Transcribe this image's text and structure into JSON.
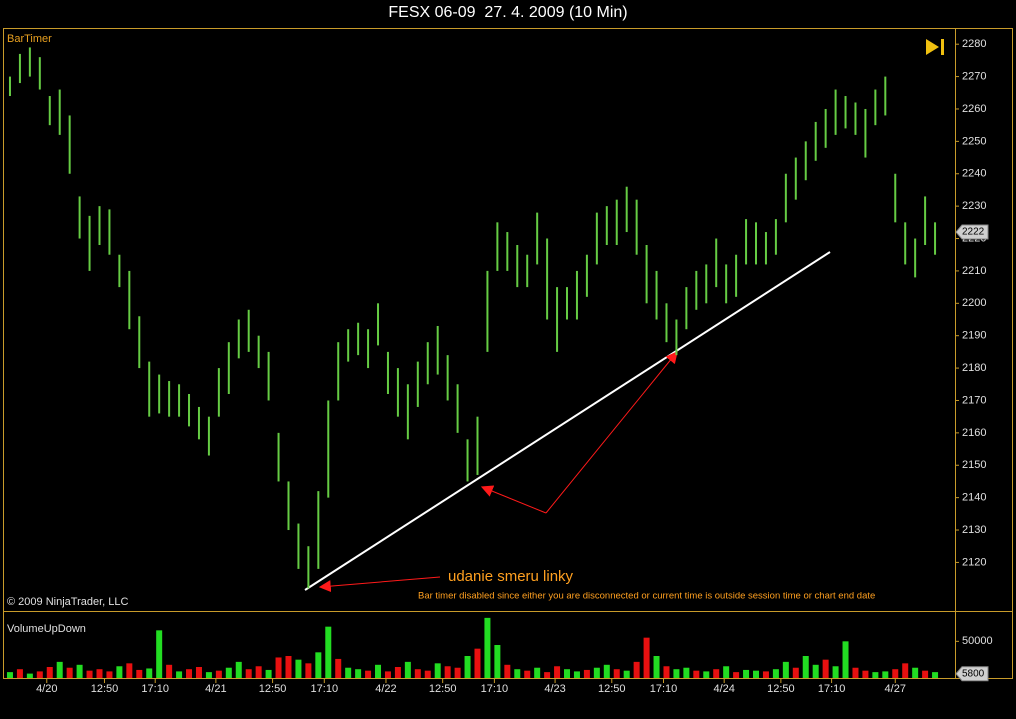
{
  "chart_data": [
    {
      "type": "range_bar",
      "title": "FESX 06-09  27. 4. 2009 (10 Min)",
      "indicator": "BarTimer",
      "copyright": "© 2009 NinjaTrader, LLC",
      "annotations": [
        "udanie smeru linky",
        "Bar timer disabled since either you are disconnected or current time is outside session time or chart end date"
      ],
      "color": "#66cc44",
      "high": [
        2270,
        2277,
        2279,
        2276,
        2264,
        2266,
        2258,
        2233,
        2227,
        2230,
        2229,
        2215,
        2210,
        2196,
        2182,
        2178,
        2176,
        2175,
        2172,
        2168,
        2165,
        2180,
        2188,
        2195,
        2198,
        2190,
        2185,
        2160,
        2145,
        2132,
        2125,
        2142,
        2170,
        2188,
        2192,
        2194,
        2192,
        2200,
        2185,
        2180,
        2175,
        2182,
        2188,
        2193,
        2184,
        2175,
        2158,
        2165,
        2210,
        2225,
        2222,
        2218,
        2215,
        2228,
        2220,
        2205,
        2205,
        2210,
        2215,
        2228,
        2230,
        2232,
        2236,
        2232,
        2218,
        2210,
        2200,
        2195,
        2205,
        2210,
        2212,
        2220,
        2212,
        2215,
        2226,
        2225,
        2222,
        2226,
        2240,
        2245,
        2250,
        2256,
        2260,
        2266,
        2264,
        2262,
        2260,
        2266,
        2270,
        2240,
        2225,
        2220,
        2233,
        2225
      ],
      "low": [
        2264,
        2268,
        2270,
        2266,
        2255,
        2252,
        2240,
        2220,
        2210,
        2218,
        2215,
        2205,
        2192,
        2180,
        2165,
        2166,
        2165,
        2165,
        2162,
        2158,
        2153,
        2165,
        2172,
        2183,
        2185,
        2180,
        2170,
        2145,
        2130,
        2118,
        2112,
        2118,
        2140,
        2170,
        2182,
        2184,
        2180,
        2187,
        2172,
        2165,
        2158,
        2168,
        2175,
        2178,
        2170,
        2160,
        2145,
        2147,
        2185,
        2210,
        2210,
        2205,
        2205,
        2212,
        2195,
        2185,
        2195,
        2195,
        2202,
        2212,
        2218,
        2218,
        2222,
        2215,
        2200,
        2195,
        2188,
        2184,
        2192,
        2198,
        2200,
        2205,
        2200,
        2202,
        2212,
        2212,
        2212,
        2215,
        2225,
        2232,
        2238,
        2244,
        2248,
        2252,
        2254,
        2252,
        2245,
        2255,
        2258,
        2225,
        2212,
        2208,
        2218,
        2215
      ],
      "last_price": 2222,
      "xlim": [
        -0.5,
        94
      ],
      "ylim": [
        2105,
        2285
      ],
      "yticks": [
        2120,
        2130,
        2140,
        2150,
        2160,
        2170,
        2180,
        2190,
        2200,
        2210,
        2220,
        2230,
        2240,
        2250,
        2260,
        2270,
        2280
      ]
    },
    {
      "type": "bar",
      "title": "VolumeUpDown",
      "values": [
        8000,
        12000,
        6000,
        9000,
        15000,
        22000,
        14000,
        18000,
        10000,
        12000,
        9000,
        16000,
        20000,
        11000,
        13000,
        65000,
        18000,
        9000,
        12000,
        15000,
        8000,
        10000,
        14000,
        22000,
        12000,
        16000,
        11000,
        28000,
        30000,
        25000,
        20000,
        35000,
        70000,
        26000,
        14000,
        12000,
        10000,
        18000,
        9000,
        15000,
        22000,
        12000,
        10000,
        20000,
        16000,
        14000,
        30000,
        40000,
        82000,
        45000,
        18000,
        12000,
        10000,
        14000,
        8000,
        16000,
        12000,
        9000,
        11000,
        14000,
        18000,
        12000,
        10000,
        22000,
        55000,
        30000,
        16000,
        12000,
        14000,
        10000,
        9000,
        12000,
        16000,
        8000,
        11000,
        10000,
        9000,
        12000,
        22000,
        14000,
        30000,
        18000,
        25000,
        16000,
        50000,
        14000,
        10000,
        8000,
        9000,
        12000,
        20000,
        14000,
        10000,
        8000
      ],
      "colors": [
        "#22dd22",
        "#e81010",
        "#22dd22",
        "#e81010",
        "#e81010",
        "#22dd22",
        "#e81010",
        "#22dd22",
        "#e81010",
        "#e81010",
        "#e81010",
        "#22dd22",
        "#e81010",
        "#e81010",
        "#22dd22",
        "#22dd22",
        "#e81010",
        "#22dd22",
        "#e81010",
        "#e81010",
        "#22dd22",
        "#e81010",
        "#22dd22",
        "#22dd22",
        "#e81010",
        "#e81010",
        "#22dd22",
        "#e81010",
        "#e81010",
        "#22dd22",
        "#e81010",
        "#22dd22",
        "#22dd22",
        "#e81010",
        "#22dd22",
        "#22dd22",
        "#e81010",
        "#22dd22",
        "#e81010",
        "#e81010",
        "#22dd22",
        "#e81010",
        "#e81010",
        "#22dd22",
        "#e81010",
        "#e81010",
        "#22dd22",
        "#e81010",
        "#22dd22",
        "#22dd22",
        "#e81010",
        "#22dd22",
        "#e81010",
        "#22dd22",
        "#e81010",
        "#e81010",
        "#22dd22",
        "#22dd22",
        "#e81010",
        "#22dd22",
        "#22dd22",
        "#e81010",
        "#22dd22",
        "#e81010",
        "#e81010",
        "#22dd22",
        "#e81010",
        "#22dd22",
        "#22dd22",
        "#e81010",
        "#22dd22",
        "#e81010",
        "#22dd22",
        "#e81010",
        "#22dd22",
        "#22dd22",
        "#e81010",
        "#22dd22",
        "#22dd22",
        "#e81010",
        "#22dd22",
        "#22dd22",
        "#e81010",
        "#22dd22",
        "#22dd22",
        "#e81010",
        "#e81010",
        "#22dd22",
        "#22dd22",
        "#e81010",
        "#e81010",
        "#22dd22",
        "#e81010",
        "#22dd22"
      ],
      "last_value": 5800,
      "xlim": [
        -0.5,
        94
      ],
      "ylim": [
        0,
        90000
      ],
      "yticks": [
        50000
      ],
      "xticks": [
        {
          "value": 3.7,
          "label": "4/20"
        },
        {
          "value": 9.5,
          "label": "12:50"
        },
        {
          "value": 14.6,
          "label": "17:10"
        },
        {
          "value": 20.7,
          "label": "4/21"
        },
        {
          "value": 26.4,
          "label": "12:50"
        },
        {
          "value": 31.6,
          "label": "17:10"
        },
        {
          "value": 37.8,
          "label": "4/22"
        },
        {
          "value": 43.5,
          "label": "12:50"
        },
        {
          "value": 48.7,
          "label": "17:10"
        },
        {
          "value": 54.8,
          "label": "4/23"
        },
        {
          "value": 60.5,
          "label": "12:50"
        },
        {
          "value": 65.7,
          "label": "17:10"
        },
        {
          "value": 71.8,
          "label": "4/24"
        },
        {
          "value": 77.5,
          "label": "12:50"
        },
        {
          "value": 82.6,
          "label": "17:10"
        },
        {
          "value": 89,
          "label": "4/27"
        }
      ]
    }
  ]
}
